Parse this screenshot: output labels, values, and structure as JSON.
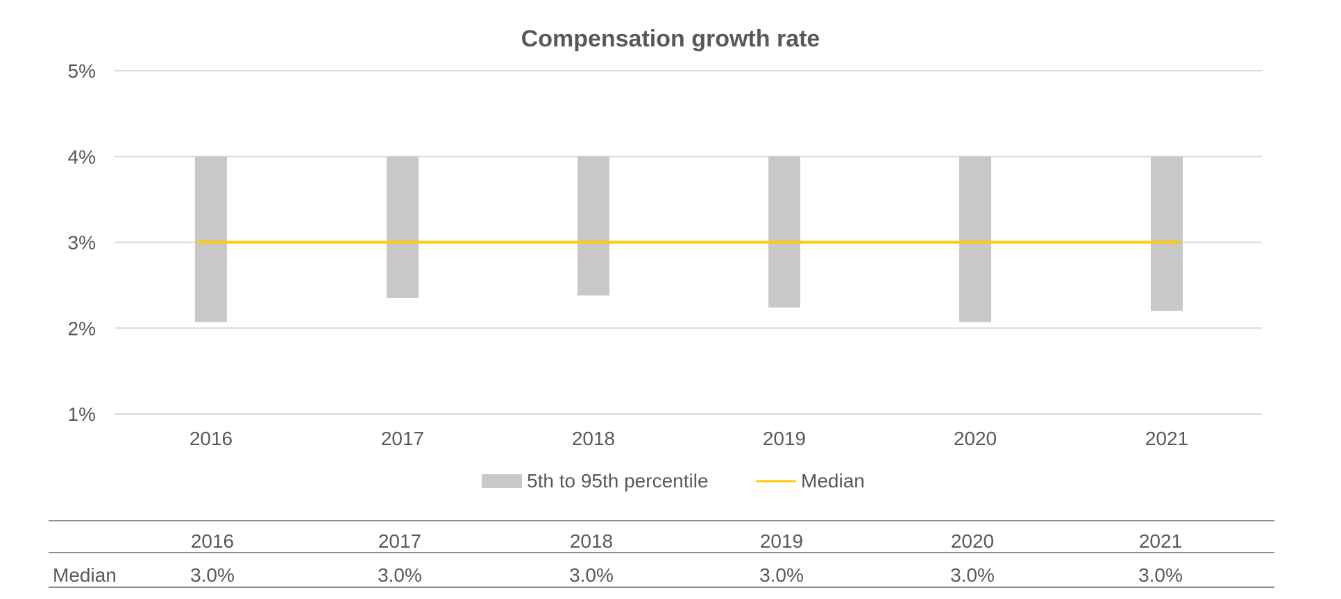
{
  "chart_data": {
    "type": "bar",
    "title": "Compensation growth rate",
    "categories": [
      "2016",
      "2017",
      "2018",
      "2019",
      "2020",
      "2021"
    ],
    "ylim": [
      1,
      5
    ],
    "yticks": [
      "1%",
      "2%",
      "3%",
      "4%",
      "5%"
    ],
    "ytick_values": [
      1,
      2,
      3,
      4,
      5
    ],
    "grid": true,
    "legend_position": "bottom",
    "series": [
      {
        "name": "5th to 95th percentile",
        "type": "floating-bar",
        "low": [
          2.07,
          2.35,
          2.38,
          2.24,
          2.07,
          2.2
        ],
        "high": [
          4.0,
          4.0,
          4.0,
          4.0,
          4.0,
          4.0
        ],
        "color": "#c8c8c8"
      },
      {
        "name": "Median",
        "type": "line",
        "values": [
          3.0,
          3.0,
          3.0,
          3.0,
          3.0,
          3.0
        ],
        "color": "#ffcc00"
      }
    ]
  },
  "table": {
    "row_label": "Median",
    "headers": [
      "2016",
      "2017",
      "2018",
      "2019",
      "2020",
      "2021"
    ],
    "values": [
      "3.0%",
      "3.0%",
      "3.0%",
      "3.0%",
      "3.0%",
      "3.0%"
    ]
  },
  "colors": {
    "bar": "#c8c8c8",
    "median": "#ffcc00",
    "grid": "#d9d9d9",
    "text": "#595959",
    "table_rule": "#8c8c8c"
  }
}
